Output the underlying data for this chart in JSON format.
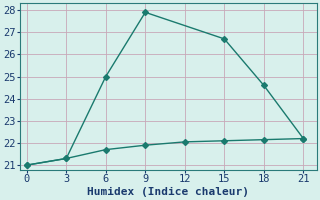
{
  "line1_x": [
    0,
    3,
    6,
    9,
    15,
    18,
    21
  ],
  "line1_y": [
    21.0,
    21.3,
    25.0,
    27.9,
    26.7,
    24.6,
    22.2
  ],
  "line2_x": [
    0,
    3,
    6,
    9,
    12,
    15,
    18,
    21
  ],
  "line2_y": [
    21.0,
    21.3,
    21.7,
    21.9,
    22.05,
    22.1,
    22.15,
    22.2
  ],
  "color": "#1a7a6e",
  "background_color": "#d8f0ec",
  "grid_color": "#c8a8b8",
  "spine_color": "#2a7a7a",
  "xlabel": "Humidex (Indice chaleur)",
  "xlabel_color": "#1a3a6e",
  "tick_color": "#1a3a6e",
  "xlim": [
    -0.5,
    22
  ],
  "ylim": [
    20.8,
    28.3
  ],
  "xticks": [
    0,
    3,
    6,
    9,
    12,
    15,
    18,
    21
  ],
  "yticks": [
    21,
    22,
    23,
    24,
    25,
    26,
    27,
    28
  ],
  "xlabel_fontsize": 8,
  "tick_fontsize": 7.5,
  "marker": "D",
  "marker_size": 3,
  "linewidth": 1.0
}
